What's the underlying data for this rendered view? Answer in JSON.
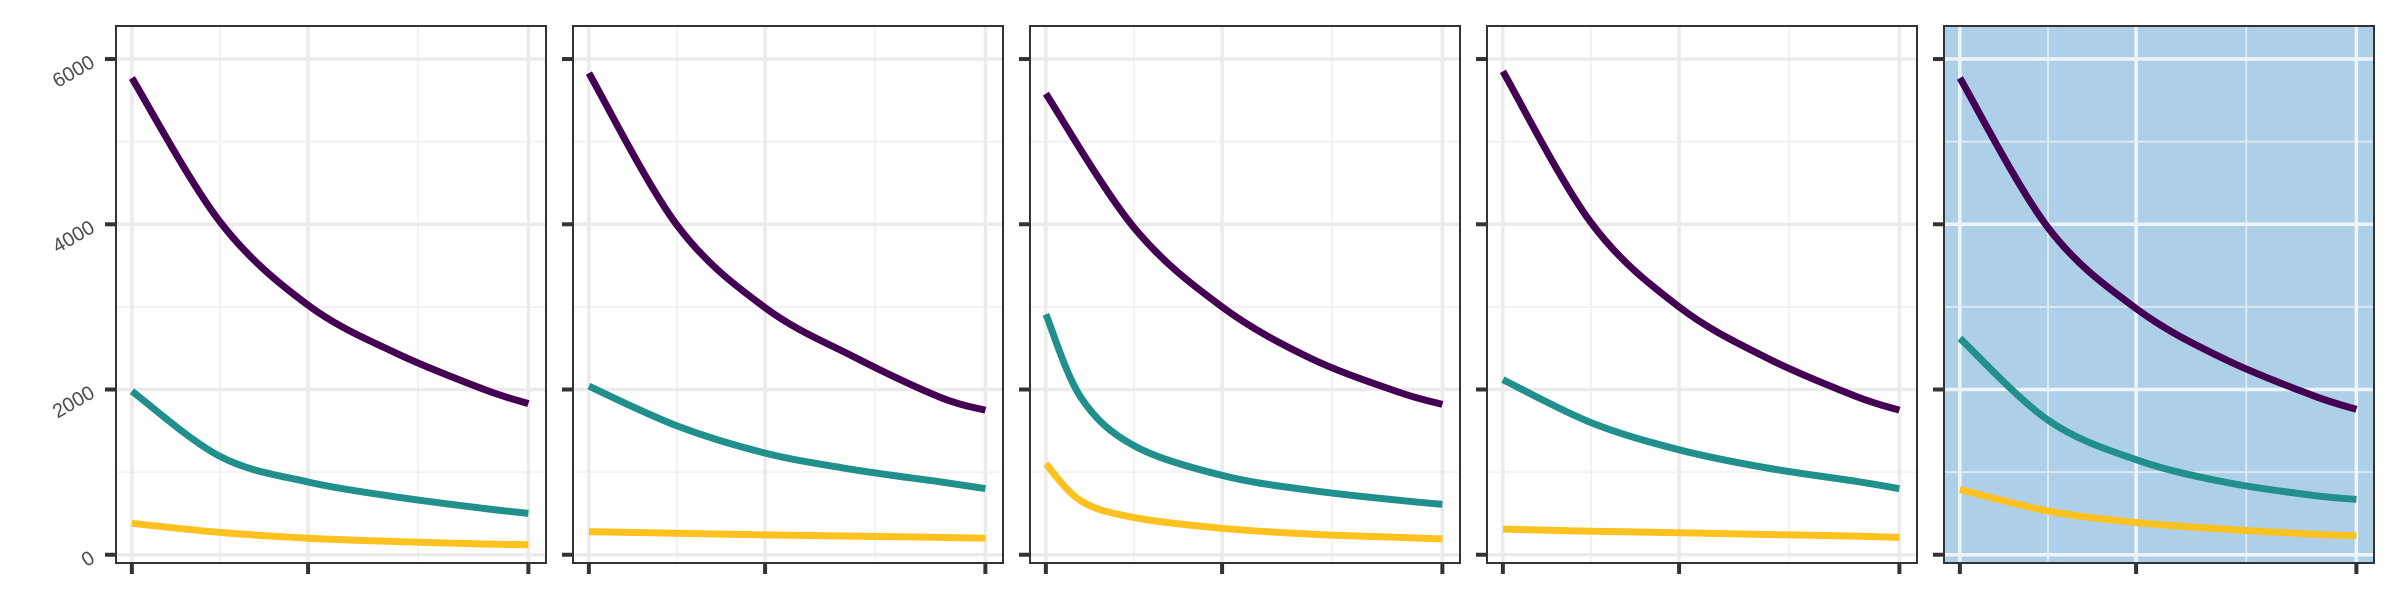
{
  "chart_data": {
    "type": "line",
    "layout": "small-multiples",
    "panel_count": 5,
    "highlighted_panel": 5,
    "highlight_color": "#aecfe8",
    "ylim": [
      -100,
      6400
    ],
    "y_ticks": [
      0,
      2000,
      4000,
      6000
    ],
    "y_tick_labels": [
      "0",
      "2000",
      "4000",
      "6000"
    ],
    "xlim": [
      -0.09,
      2.35
    ],
    "x_ticks": [
      0,
      1,
      2.25
    ],
    "grid": true,
    "legend": "none",
    "series_colors": [
      "#440154",
      "#21908c",
      "#fdc21f"
    ],
    "panels": [
      {
        "series": [
          {
            "color": "#440154",
            "x": [
              0,
              0.5,
              1,
              1.5,
              2,
              2.25
            ],
            "y": [
              5770,
              4030,
              3020,
              2440,
              2000,
              1830
            ]
          },
          {
            "color": "#21908c",
            "x": [
              0,
              0.5,
              1,
              1.5,
              2,
              2.25
            ],
            "y": [
              1980,
              1190,
              880,
              700,
              560,
              500
            ]
          },
          {
            "color": "#fdc21f",
            "x": [
              0,
              0.5,
              1,
              1.5,
              2,
              2.25
            ],
            "y": [
              380,
              270,
              200,
              160,
              130,
              120
            ]
          }
        ]
      },
      {
        "series": [
          {
            "color": "#440154",
            "x": [
              0,
              0.5,
              1,
              1.5,
              2,
              2.25
            ],
            "y": [
              5830,
              3990,
              2990,
              2400,
              1900,
              1750
            ]
          },
          {
            "color": "#21908c",
            "x": [
              0,
              0.5,
              1,
              1.5,
              2,
              2.25
            ],
            "y": [
              2040,
              1560,
              1230,
              1030,
              880,
              800
            ]
          },
          {
            "color": "#fdc21f",
            "x": [
              0,
              0.5,
              1,
              1.5,
              2,
              2.25
            ],
            "y": [
              280,
              260,
              240,
              225,
              210,
              200
            ]
          }
        ]
      },
      {
        "series": [
          {
            "color": "#440154",
            "x": [
              0,
              0.5,
              1,
              1.5,
              2,
              2.25
            ],
            "y": [
              5580,
              3960,
              3000,
              2380,
              1970,
              1820
            ]
          },
          {
            "color": "#21908c",
            "x": [
              0,
              0.2,
              0.5,
              1,
              1.5,
              2,
              2.25
            ],
            "y": [
              2910,
              1900,
              1320,
              960,
              780,
              660,
              610
            ]
          },
          {
            "color": "#fdc21f",
            "x": [
              0,
              0.2,
              0.5,
              1,
              1.5,
              2,
              2.25
            ],
            "y": [
              1100,
              650,
              450,
              320,
              250,
              210,
              190
            ]
          }
        ]
      },
      {
        "series": [
          {
            "color": "#440154",
            "x": [
              0,
              0.5,
              1,
              1.5,
              2,
              2.25
            ],
            "y": [
              5850,
              4020,
              3000,
              2380,
              1920,
              1750
            ]
          },
          {
            "color": "#21908c",
            "x": [
              0,
              0.5,
              1,
              1.5,
              2,
              2.25
            ],
            "y": [
              2120,
              1600,
              1270,
              1050,
              890,
              800
            ]
          },
          {
            "color": "#fdc21f",
            "x": [
              0,
              0.5,
              1,
              1.5,
              2,
              2.25
            ],
            "y": [
              310,
              285,
              265,
              245,
              225,
              210
            ]
          }
        ]
      },
      {
        "series": [
          {
            "color": "#440154",
            "x": [
              0,
              0.5,
              1,
              1.5,
              2,
              2.25
            ],
            "y": [
              5770,
              3960,
              2980,
              2370,
              1930,
              1760
            ]
          },
          {
            "color": "#21908c",
            "x": [
              0,
              0.5,
              1,
              1.5,
              2,
              2.25
            ],
            "y": [
              2620,
              1630,
              1150,
              880,
              720,
              670
            ]
          },
          {
            "color": "#fdc21f",
            "x": [
              0,
              0.5,
              1,
              1.5,
              2,
              2.25
            ],
            "y": [
              790,
              530,
              390,
              310,
              250,
              230
            ]
          }
        ]
      }
    ]
  }
}
